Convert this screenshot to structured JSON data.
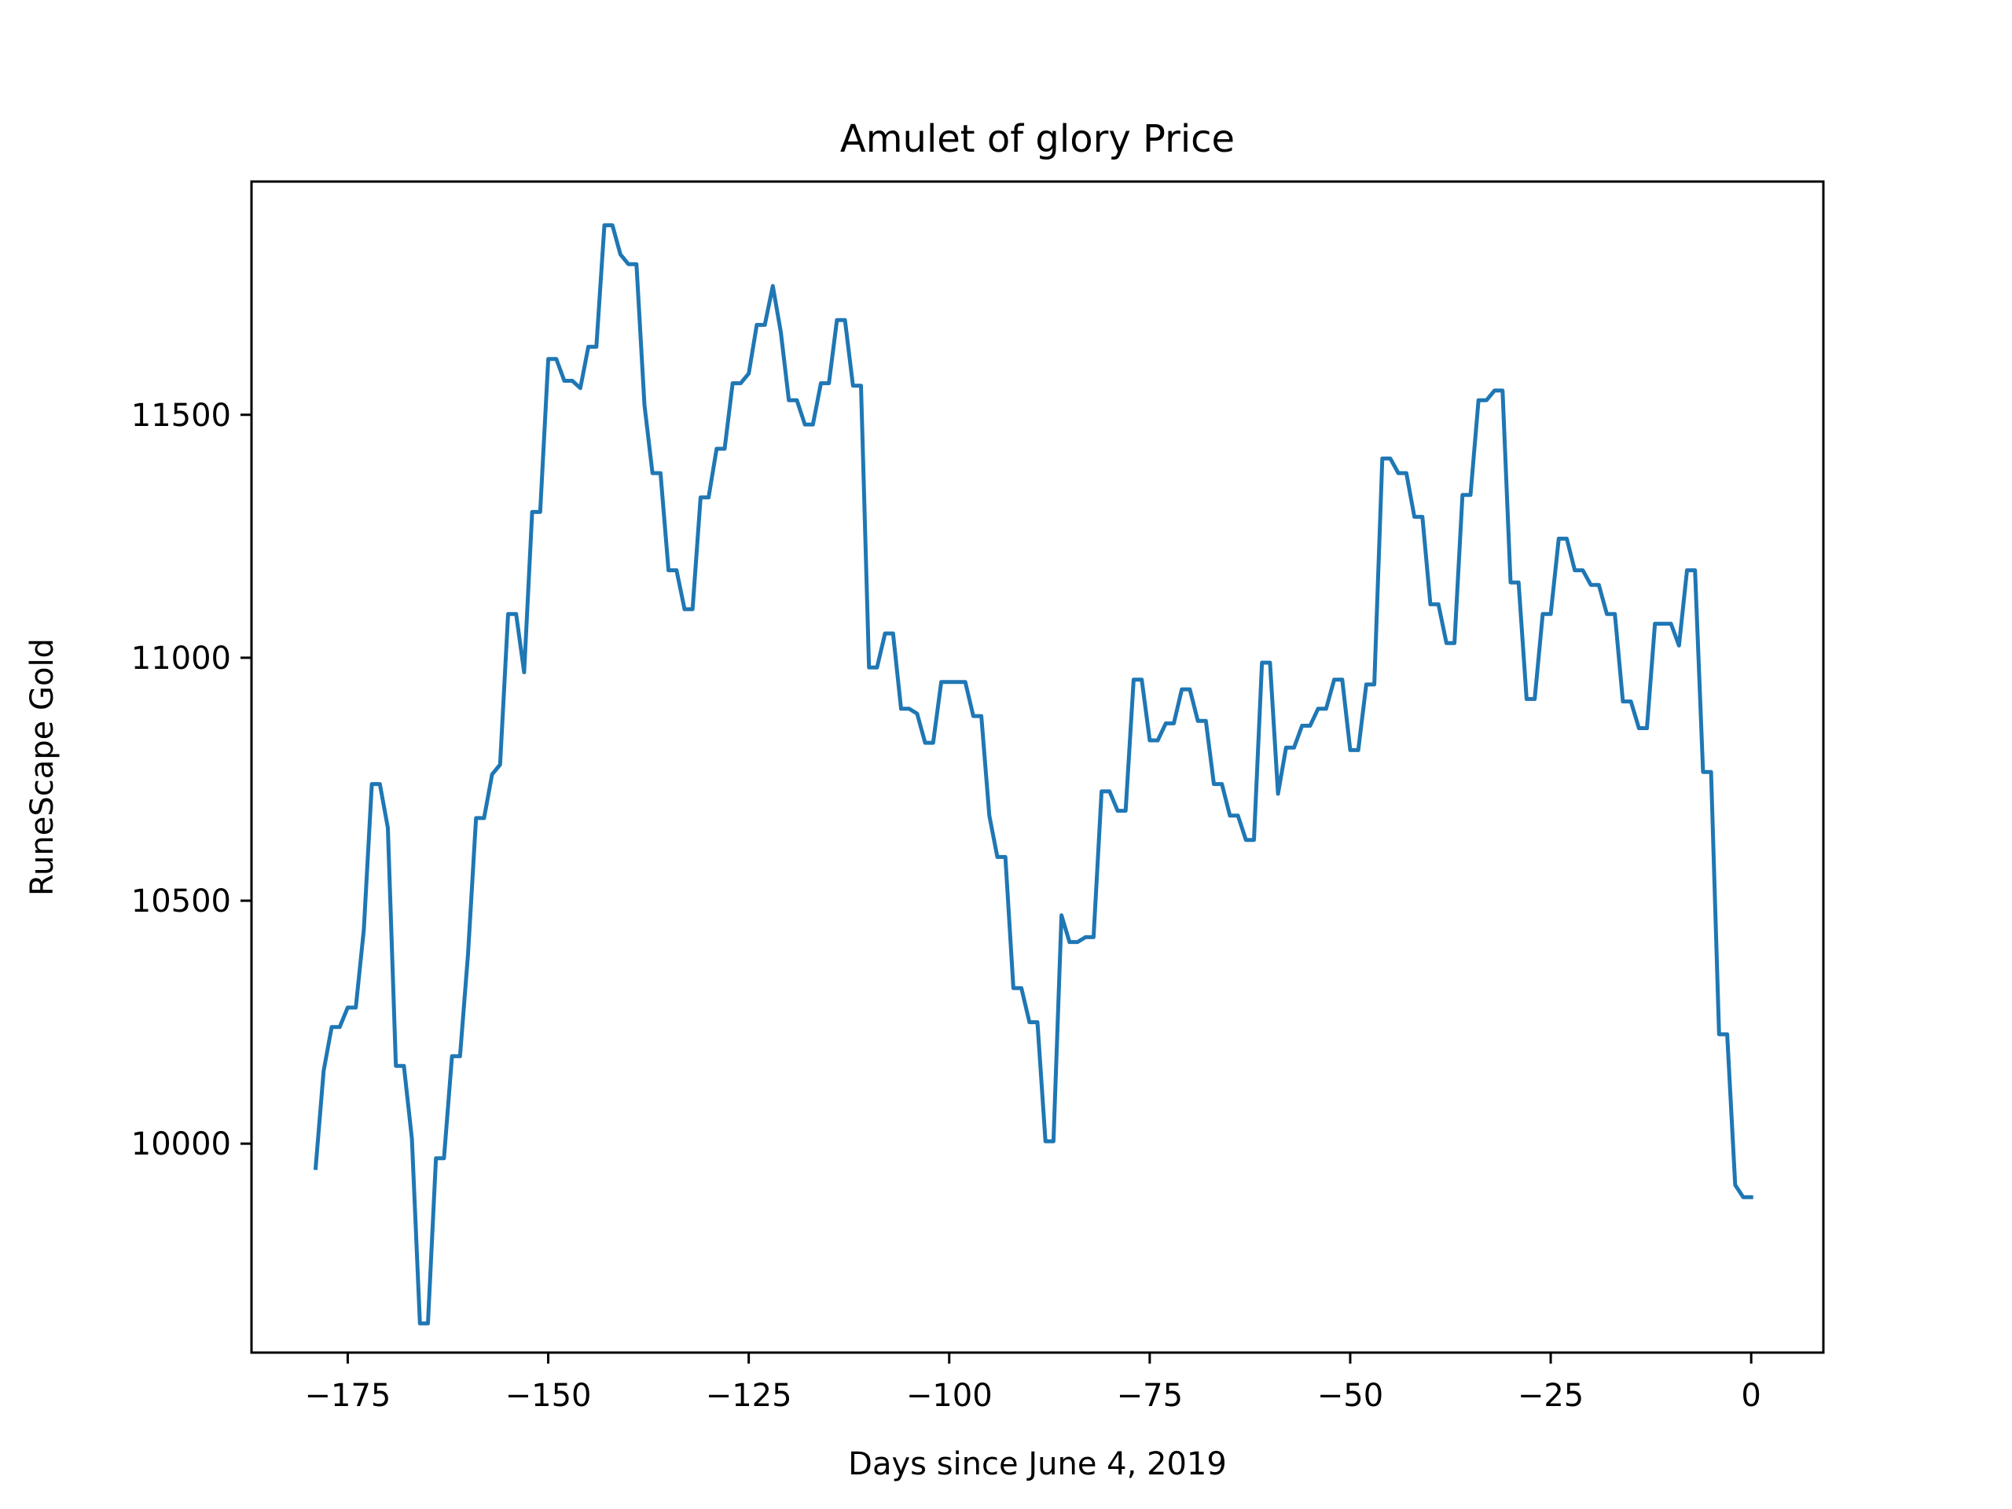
{
  "chart_data": {
    "type": "line",
    "title": "Amulet of glory Price",
    "xlabel": "Days since June 4, 2019",
    "ylabel": "RuneScape Gold",
    "xlim": [
      -187,
      9
    ],
    "ylim": [
      9570,
      11980
    ],
    "xticks": [
      -175,
      -150,
      -125,
      -100,
      -75,
      -50,
      -25,
      0
    ],
    "xtick_labels": [
      "−175",
      "−150",
      "−125",
      "−100",
      "−75",
      "−50",
      "−25",
      "0"
    ],
    "yticks": [
      10000,
      10500,
      11000,
      11500
    ],
    "ytick_labels": [
      "10000",
      "10500",
      "11000",
      "11500"
    ],
    "grid": false,
    "series": [
      {
        "color": "#1f77b4",
        "x": [
          -179,
          -178,
          -177,
          -176,
          -175,
          -174,
          -173,
          -172,
          -171,
          -170,
          -169,
          -168,
          -167,
          -166,
          -165,
          -164,
          -163,
          -162,
          -161,
          -160,
          -159,
          -158,
          -157,
          -156,
          -155,
          -154,
          -153,
          -152,
          -151,
          -150,
          -149,
          -148,
          -147,
          -146,
          -145,
          -144,
          -143,
          -142,
          -141,
          -140,
          -139,
          -138,
          -137,
          -136,
          -135,
          -134,
          -133,
          -132,
          -131,
          -130,
          -129,
          -128,
          -127,
          -126,
          -125,
          -124,
          -123,
          -122,
          -121,
          -120,
          -119,
          -118,
          -117,
          -116,
          -115,
          -114,
          -113,
          -112,
          -111,
          -110,
          -109,
          -108,
          -107,
          -106,
          -105,
          -104,
          -103,
          -102,
          -101,
          -100,
          -99,
          -98,
          -97,
          -96,
          -95,
          -94,
          -93,
          -92,
          -91,
          -90,
          -89,
          -88,
          -87,
          -86,
          -85,
          -84,
          -83,
          -82,
          -81,
          -80,
          -79,
          -78,
          -77,
          -76,
          -75,
          -74,
          -73,
          -72,
          -71,
          -70,
          -69,
          -68,
          -67,
          -66,
          -65,
          -64,
          -63,
          -62,
          -61,
          -60,
          -59,
          -58,
          -57,
          -56,
          -55,
          -54,
          -53,
          -52,
          -51,
          -50,
          -49,
          -48,
          -47,
          -46,
          -45,
          -44,
          -43,
          -42,
          -41,
          -40,
          -39,
          -38,
          -37,
          -36,
          -35,
          -34,
          -33,
          -32,
          -31,
          -30,
          -29,
          -28,
          -27,
          -26,
          -25,
          -24,
          -23,
          -22,
          -21,
          -20,
          -19,
          -18,
          -17,
          -16,
          -15,
          -14,
          -13,
          -12,
          -11,
          -10,
          -9,
          -8,
          -7,
          -6,
          -5,
          -4,
          -3,
          -2,
          -1,
          0
        ],
        "y": [
          9950,
          10150,
          10240,
          10240,
          10280,
          10280,
          10440,
          10740,
          10740,
          10650,
          10160,
          10160,
          10010,
          9630,
          9630,
          9970,
          9970,
          10180,
          10180,
          10390,
          10670,
          10670,
          10760,
          10780,
          11090,
          11090,
          10970,
          11300,
          11300,
          11615,
          11615,
          11570,
          11570,
          11555,
          11640,
          11640,
          11890,
          11890,
          11830,
          11810,
          11810,
          11520,
          11380,
          11380,
          11180,
          11180,
          11100,
          11100,
          11330,
          11330,
          11430,
          11430,
          11565,
          11565,
          11585,
          11685,
          11685,
          11765,
          11670,
          11530,
          11530,
          11480,
          11480,
          11565,
          11565,
          11695,
          11695,
          11560,
          11560,
          10980,
          10980,
          11050,
          11050,
          10895,
          10895,
          10885,
          10825,
          10825,
          10950,
          10950,
          10950,
          10950,
          10880,
          10880,
          10675,
          10590,
          10590,
          10320,
          10320,
          10250,
          10250,
          10005,
          10005,
          10470,
          10415,
          10415,
          10425,
          10425,
          10725,
          10725,
          10685,
          10685,
          10955,
          10955,
          10830,
          10830,
          10865,
          10865,
          10935,
          10935,
          10870,
          10870,
          10740,
          10740,
          10675,
          10675,
          10625,
          10625,
          10990,
          10990,
          10720,
          10815,
          10815,
          10860,
          10860,
          10895,
          10895,
          10955,
          10955,
          10810,
          10810,
          10945,
          10945,
          11410,
          11410,
          11380,
          11380,
          11290,
          11290,
          11110,
          11110,
          11030,
          11030,
          11335,
          11335,
          11530,
          11530,
          11550,
          11550,
          11155,
          11155,
          10915,
          10915,
          11090,
          11090,
          11245,
          11245,
          11180,
          11180,
          11150,
          11150,
          11090,
          11090,
          10910,
          10910,
          10855,
          10855,
          11070,
          11070,
          11070,
          11025,
          11180,
          11180,
          10765,
          10765,
          10225,
          10225,
          9915,
          9890,
          9890
        ]
      }
    ]
  }
}
